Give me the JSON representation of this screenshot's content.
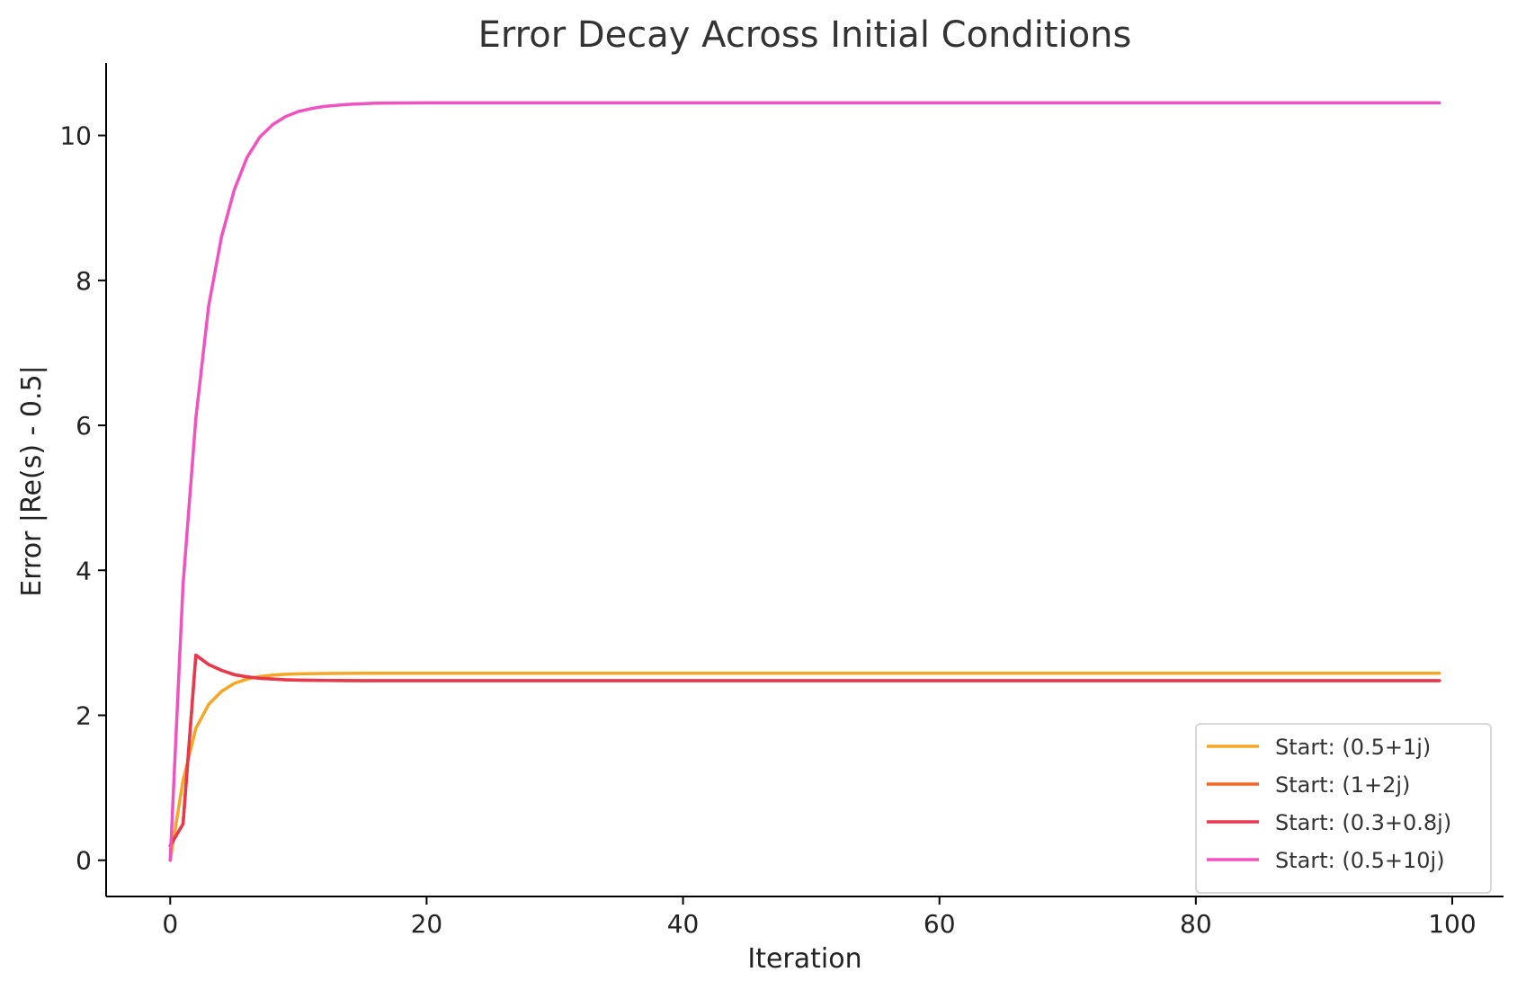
{
  "chart_data": {
    "type": "line",
    "title": "Error Decay Across Initial Conditions",
    "xlabel": "Iteration",
    "ylabel": "Error |Re(s) - 0.5|",
    "xlim": [
      -5,
      104
    ],
    "ylim": [
      -0.5,
      11.0
    ],
    "xticks": [
      0,
      20,
      40,
      60,
      80,
      100
    ],
    "yticks": [
      0,
      2,
      4,
      6,
      8,
      10
    ],
    "grid": false,
    "legend_position": "bottom-right",
    "series": [
      {
        "name": "Start: (0.5+1j)",
        "color": "#f5a623",
        "points": [
          [
            0,
            0.0
          ],
          [
            1,
            1.1
          ],
          [
            2,
            1.82
          ],
          [
            3,
            2.15
          ],
          [
            4,
            2.33
          ],
          [
            5,
            2.44
          ],
          [
            6,
            2.5
          ],
          [
            7,
            2.535
          ],
          [
            8,
            2.555
          ],
          [
            9,
            2.565
          ],
          [
            10,
            2.572
          ],
          [
            12,
            2.577
          ],
          [
            15,
            2.58
          ],
          [
            20,
            2.58
          ],
          [
            40,
            2.58
          ],
          [
            60,
            2.58
          ],
          [
            80,
            2.58
          ],
          [
            99,
            2.58
          ]
        ]
      },
      {
        "name": "Start: (1+2j)",
        "color": "#f26522",
        "points": [
          [
            0,
            0.2
          ],
          [
            1,
            0.5
          ],
          [
            2,
            2.83
          ],
          [
            3,
            2.7
          ],
          [
            4,
            2.62
          ],
          [
            5,
            2.56
          ],
          [
            6,
            2.53
          ],
          [
            7,
            2.51
          ],
          [
            8,
            2.5
          ],
          [
            9,
            2.49
          ],
          [
            10,
            2.485
          ],
          [
            12,
            2.48
          ],
          [
            15,
            2.478
          ],
          [
            20,
            2.478
          ],
          [
            40,
            2.478
          ],
          [
            60,
            2.478
          ],
          [
            80,
            2.478
          ],
          [
            99,
            2.478
          ]
        ]
      },
      {
        "name": "Start: (0.3+0.8j)",
        "color": "#e8384f",
        "points": [
          [
            0,
            0.2
          ],
          [
            1,
            0.5
          ],
          [
            2,
            2.83
          ],
          [
            3,
            2.7
          ],
          [
            4,
            2.62
          ],
          [
            5,
            2.56
          ],
          [
            6,
            2.53
          ],
          [
            7,
            2.51
          ],
          [
            8,
            2.5
          ],
          [
            9,
            2.49
          ],
          [
            10,
            2.485
          ],
          [
            12,
            2.48
          ],
          [
            15,
            2.478
          ],
          [
            20,
            2.478
          ],
          [
            40,
            2.478
          ],
          [
            60,
            2.478
          ],
          [
            80,
            2.478
          ],
          [
            99,
            2.478
          ]
        ]
      },
      {
        "name": "Start: (0.5+10j)",
        "color": "#f052c0",
        "points": [
          [
            0,
            0.0
          ],
          [
            1,
            3.8
          ],
          [
            2,
            6.1
          ],
          [
            3,
            7.65
          ],
          [
            4,
            8.6
          ],
          [
            5,
            9.25
          ],
          [
            6,
            9.7
          ],
          [
            7,
            9.98
          ],
          [
            8,
            10.15
          ],
          [
            9,
            10.26
          ],
          [
            10,
            10.33
          ],
          [
            11,
            10.37
          ],
          [
            12,
            10.4
          ],
          [
            14,
            10.43
          ],
          [
            16,
            10.445
          ],
          [
            20,
            10.45
          ],
          [
            40,
            10.45
          ],
          [
            60,
            10.45
          ],
          [
            80,
            10.45
          ],
          [
            99,
            10.45
          ]
        ]
      }
    ]
  }
}
